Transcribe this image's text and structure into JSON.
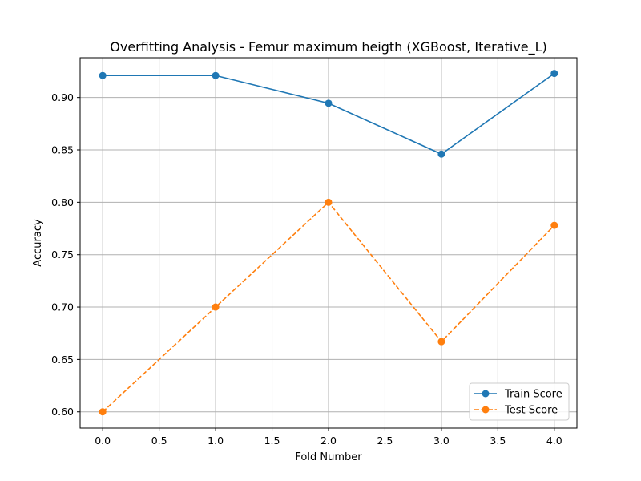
{
  "chart_data": {
    "type": "line",
    "title": "Overfitting Analysis - Femur maximum heigth (XGBoost, Iterative_L)",
    "xlabel": "Fold Number",
    "ylabel": "Accuracy",
    "xlim": [
      -0.2,
      4.2
    ],
    "ylim": [
      0.5845,
      0.938
    ],
    "x_ticks": [
      0.0,
      0.5,
      1.0,
      1.5,
      2.0,
      2.5,
      3.0,
      3.5,
      4.0
    ],
    "x_tick_labels": [
      "0.0",
      "0.5",
      "1.0",
      "1.5",
      "2.0",
      "2.5",
      "3.0",
      "3.5",
      "4.0"
    ],
    "y_ticks": [
      0.6,
      0.65,
      0.7,
      0.75,
      0.8,
      0.85,
      0.9
    ],
    "y_tick_labels": [
      "0.60",
      "0.65",
      "0.70",
      "0.75",
      "0.80",
      "0.85",
      "0.90"
    ],
    "grid": true,
    "legend_position": "lower-right",
    "x": [
      0,
      1,
      2,
      3,
      4
    ],
    "series": [
      {
        "name": "Train Score",
        "values": [
          0.921,
          0.921,
          0.8945,
          0.846,
          0.923
        ],
        "color": "#1f77b4",
        "line_style": "solid",
        "marker": "circle"
      },
      {
        "name": "Test Score",
        "values": [
          0.6,
          0.7,
          0.8,
          0.667,
          0.778
        ],
        "color": "#ff7f0e",
        "line_style": "dashed",
        "marker": "circle"
      }
    ]
  }
}
